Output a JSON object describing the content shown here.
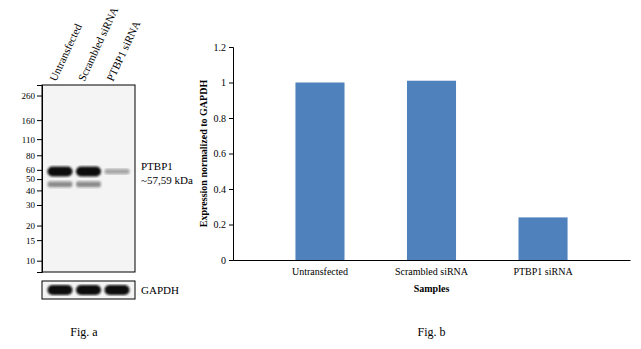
{
  "chart_data": [
    {
      "type": "blot",
      "caption": "Fig. a",
      "lanes": [
        "Untransfected",
        "Scrambled siRNA",
        "PTBP1 siRNA"
      ],
      "log": "y",
      "ylim": [
        8,
        320
      ],
      "yticks": [
        260,
        160,
        110,
        80,
        60,
        50,
        40,
        30,
        20,
        15,
        10
      ],
      "bands": [
        {
          "kda": 58,
          "intensity": [
            1,
            1,
            0.35
          ]
        },
        {
          "kda": 46,
          "intensity": [
            0.3,
            0.3,
            0
          ]
        },
        {
          "kda": 44,
          "intensity": [
            0.25,
            0.25,
            0
          ]
        }
      ],
      "band_label": "PTBP1",
      "band_size_label": "~57,59 kDa",
      "loading_control": {
        "label": "GAPDH",
        "intensity": [
          1,
          1,
          1
        ]
      }
    },
    {
      "type": "bar",
      "caption": "Fig. b",
      "categories": [
        "Untransfected",
        "Scrambled siRNA",
        "PTBP1 siRNA"
      ],
      "values": [
        1.0,
        1.01,
        0.24
      ],
      "color": "#4f81bd",
      "ylim": [
        0,
        1.2
      ],
      "yticks": [
        0,
        0.2,
        0.4,
        0.6,
        0.8,
        1,
        1.2
      ],
      "y_label": "Expression normalized to GAPDH",
      "x_label": "Samples",
      "grid": false
    }
  ]
}
